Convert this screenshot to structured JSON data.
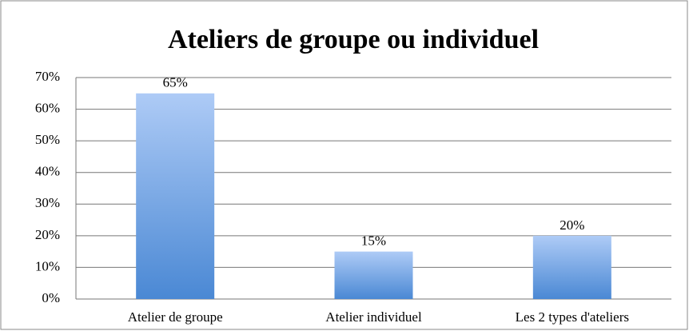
{
  "chart_data": {
    "type": "bar",
    "title": "Ateliers de groupe ou individuel",
    "categories": [
      "Atelier de groupe",
      "Atelier individuel",
      "Les 2 types d'ateliers"
    ],
    "values": [
      65,
      15,
      20
    ],
    "value_labels": [
      "65%",
      "15%",
      "20%"
    ],
    "color": "#6fa3e6",
    "ylim": [
      0,
      70
    ],
    "yticks": [
      {
        "value": 0,
        "label": "0%"
      },
      {
        "value": 10,
        "label": "10%"
      },
      {
        "value": 20,
        "label": "20%"
      },
      {
        "value": 30,
        "label": "30%"
      },
      {
        "value": 40,
        "label": "40%"
      },
      {
        "value": 50,
        "label": "50%"
      },
      {
        "value": 60,
        "label": "60%"
      },
      {
        "value": 70,
        "label": "70%"
      }
    ],
    "grid": true
  }
}
